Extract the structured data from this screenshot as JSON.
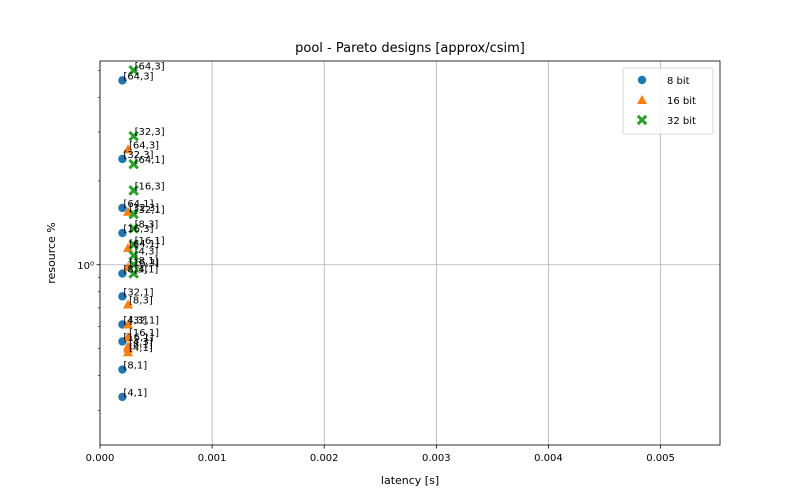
{
  "chart_data": {
    "type": "scatter",
    "title": "pool - Pareto designs [approx/csim]",
    "xlabel": "latency [s]",
    "ylabel": "resource %",
    "x_ticks": [
      "0.000",
      "0.001",
      "0.002",
      "0.003",
      "0.004",
      "0.005"
    ],
    "x_tick_values": [
      0,
      0.001,
      0.002,
      0.003,
      0.004,
      0.005
    ],
    "y_major_tick_label": "10⁰",
    "y_major_tick_value": 1,
    "xlim": [
      0,
      0.00553
    ],
    "ylim": [
      0.225,
      5.4
    ],
    "yscale": "log",
    "grid": true,
    "legend_position": "top-right",
    "series": [
      {
        "name": "8 bit",
        "color": "#1f77b4",
        "marker": "circle",
        "points": [
          {
            "x": 0.0002,
            "y": 4.6,
            "label": "[64,3]"
          },
          {
            "x": 0.0002,
            "y": 2.4,
            "label": "[32,3]"
          },
          {
            "x": 0.0002,
            "y": 1.6,
            "label": "[64,1]"
          },
          {
            "x": 0.0002,
            "y": 1.3,
            "label": "[16,3]"
          },
          {
            "x": 0.0002,
            "y": 0.93,
            "label": "[8,3]"
          },
          {
            "x": 0.0002,
            "y": 0.77,
            "label": "[32,1]"
          },
          {
            "x": 0.0002,
            "y": 0.61,
            "label": "[4,3]"
          },
          {
            "x": 0.0002,
            "y": 0.53,
            "label": "[16,1]"
          },
          {
            "x": 0.0002,
            "y": 0.42,
            "label": "[8,1]"
          },
          {
            "x": 0.0002,
            "y": 0.335,
            "label": "[4,1]"
          }
        ]
      },
      {
        "name": "16 bit",
        "color": "#ff7f0e",
        "marker": "triangle",
        "points": [
          {
            "x": 0.00025,
            "y": 2.6,
            "label": "[64,3]"
          },
          {
            "x": 0.00025,
            "y": 1.55,
            "label": "[32,3]"
          },
          {
            "x": 0.00025,
            "y": 1.15,
            "label": "[64,1]"
          },
          {
            "x": 0.00025,
            "y": 0.98,
            "label": "[16,3]"
          },
          {
            "x": 0.00025,
            "y": 0.72,
            "label": "[8,3]"
          },
          {
            "x": 0.00025,
            "y": 0.61,
            "label": "[32,1]"
          },
          {
            "x": 0.00025,
            "y": 0.55,
            "label": "[16,1]"
          },
          {
            "x": 0.00025,
            "y": 0.51,
            "label": "[4,3]"
          },
          {
            "x": 0.00025,
            "y": 0.5,
            "label": "[8,1]"
          },
          {
            "x": 0.00025,
            "y": 0.485,
            "label": "[4,1]"
          }
        ]
      },
      {
        "name": "32 bit",
        "color": "#2ca02c",
        "marker": "x",
        "points": [
          {
            "x": 0.0003,
            "y": 5.0,
            "label": "[64,3]"
          },
          {
            "x": 0.0003,
            "y": 2.9,
            "label": "[32,3]"
          },
          {
            "x": 0.0003,
            "y": 2.3,
            "label": "[64,1]"
          },
          {
            "x": 0.0003,
            "y": 1.85,
            "label": "[16,3]"
          },
          {
            "x": 0.0003,
            "y": 1.52,
            "label": "[32,1]"
          },
          {
            "x": 0.0003,
            "y": 1.35,
            "label": "[8,3]"
          },
          {
            "x": 0.0003,
            "y": 1.18,
            "label": "[16,1]"
          },
          {
            "x": 0.0003,
            "y": 1.08,
            "label": "[4,3]"
          },
          {
            "x": 0.0003,
            "y": 1.0,
            "label": "[8,1]"
          },
          {
            "x": 0.0003,
            "y": 0.93,
            "label": "[4,1]"
          }
        ]
      }
    ]
  }
}
